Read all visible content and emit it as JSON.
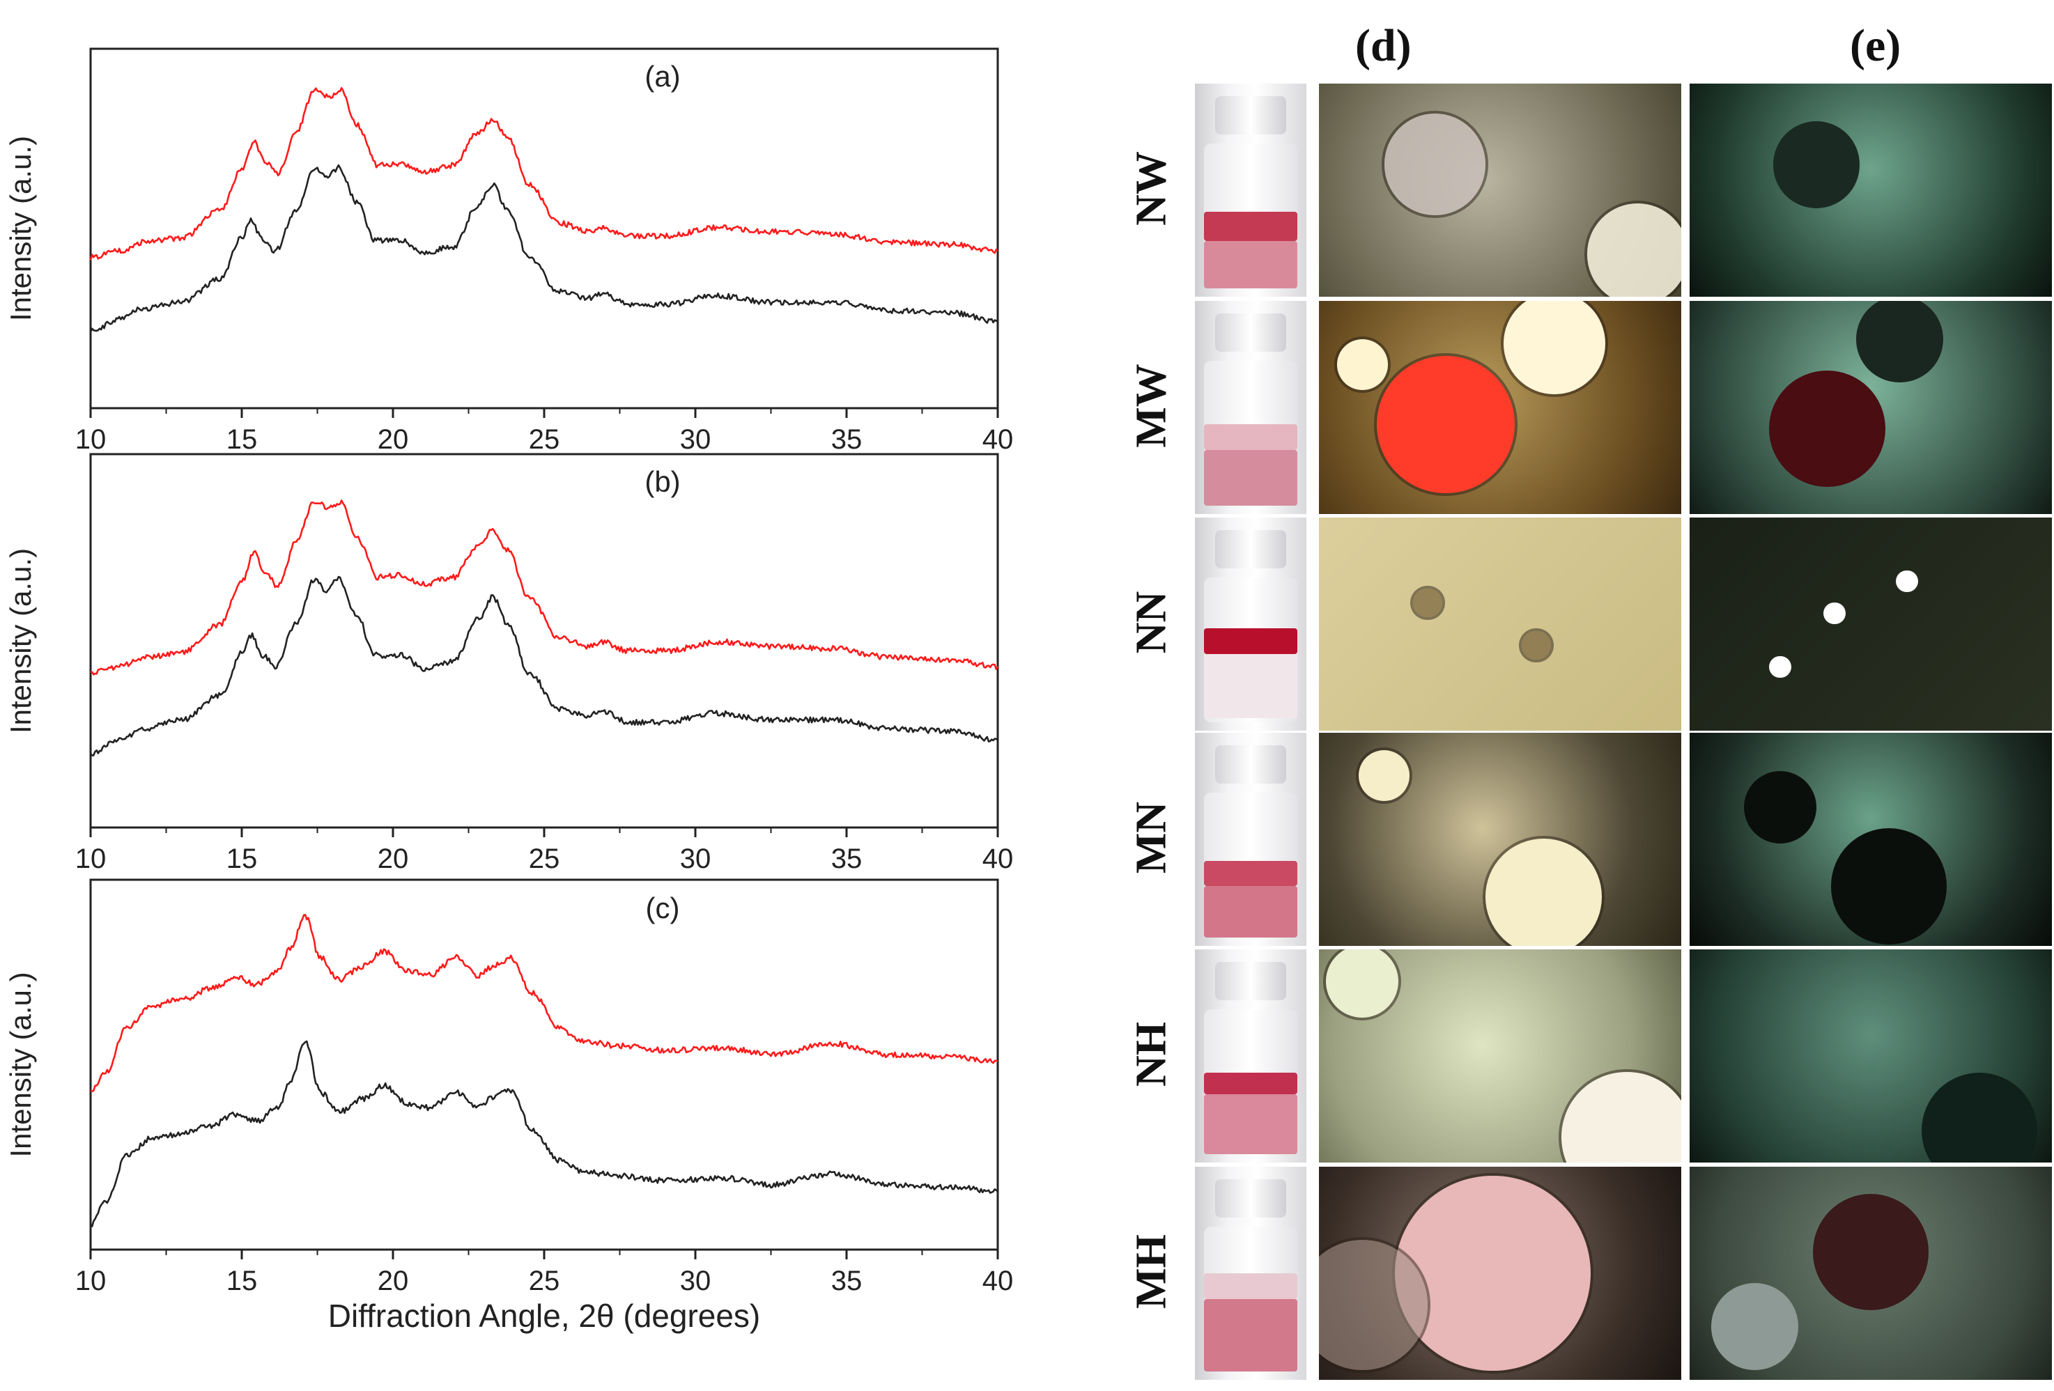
{
  "chart_data": [
    {
      "type": "line",
      "panel_label": "(a)",
      "xlabel": "",
      "ylabel": "Intensity (a.u.)",
      "xlim": [
        10,
        40
      ],
      "xticks": [
        "10",
        "15",
        "20",
        "25",
        "30",
        "35",
        "40"
      ],
      "series": [
        {
          "name": "red",
          "color": "#ff1a1a",
          "x": [
            10,
            11,
            11.7,
            13,
            14.3,
            15.0,
            15.4,
            15.8,
            16.2,
            16.8,
            17.4,
            17.9,
            18.3,
            18.8,
            19.5,
            20.3,
            21.0,
            22.0,
            22.8,
            23.3,
            23.8,
            24.5,
            25.5,
            26.5,
            26.9,
            27.8,
            29.0,
            30.8,
            32.5,
            34.5,
            36.5,
            38.5,
            40
          ],
          "values": [
            0.04,
            0.07,
            0.11,
            0.13,
            0.26,
            0.45,
            0.58,
            0.48,
            0.43,
            0.63,
            0.82,
            0.79,
            0.82,
            0.66,
            0.47,
            0.48,
            0.44,
            0.47,
            0.62,
            0.68,
            0.6,
            0.38,
            0.2,
            0.16,
            0.18,
            0.14,
            0.14,
            0.18,
            0.16,
            0.15,
            0.11,
            0.1,
            0.07
          ]
        },
        {
          "name": "black",
          "color": "#222222",
          "x": [
            10,
            11,
            11.7,
            13,
            14.3,
            15.0,
            15.3,
            15.7,
            16.1,
            16.8,
            17.4,
            17.8,
            18.2,
            18.8,
            19.4,
            20.3,
            21.0,
            22.0,
            22.8,
            23.3,
            23.8,
            24.5,
            25.5,
            26.5,
            26.9,
            27.8,
            29.0,
            30.7,
            32.5,
            34.5,
            36.5,
            38.5,
            40
          ],
          "values": [
            -0.3,
            -0.25,
            -0.2,
            -0.17,
            -0.06,
            0.13,
            0.21,
            0.12,
            0.07,
            0.26,
            0.46,
            0.41,
            0.46,
            0.3,
            0.12,
            0.12,
            0.06,
            0.09,
            0.28,
            0.38,
            0.26,
            0.04,
            -0.12,
            -0.15,
            -0.13,
            -0.18,
            -0.18,
            -0.14,
            -0.17,
            -0.17,
            -0.21,
            -0.22,
            -0.26
          ]
        }
      ]
    },
    {
      "type": "line",
      "panel_label": "(b)",
      "xlabel": "",
      "ylabel": "Intensity (a.u.)",
      "xlim": [
        10,
        40
      ],
      "xticks": [
        "10",
        "15",
        "20",
        "25",
        "30",
        "35",
        "40"
      ],
      "series": [
        {
          "name": "red",
          "color": "#ff1a1a",
          "x": [
            10,
            11,
            11.7,
            13,
            14.3,
            15.0,
            15.4,
            15.8,
            16.2,
            16.8,
            17.4,
            17.9,
            18.3,
            18.8,
            19.5,
            20.3,
            21.0,
            22.0,
            22.8,
            23.3,
            23.8,
            24.5,
            25.5,
            26.5,
            26.9,
            27.8,
            29.0,
            30.8,
            32.5,
            34.5,
            36.5,
            38.5,
            40
          ],
          "values": [
            0.03,
            0.06,
            0.1,
            0.12,
            0.25,
            0.44,
            0.57,
            0.47,
            0.42,
            0.62,
            0.8,
            0.77,
            0.8,
            0.64,
            0.46,
            0.47,
            0.43,
            0.46,
            0.6,
            0.67,
            0.58,
            0.37,
            0.19,
            0.15,
            0.17,
            0.13,
            0.13,
            0.17,
            0.15,
            0.14,
            0.1,
            0.09,
            0.06
          ]
        },
        {
          "name": "black",
          "color": "#222222",
          "x": [
            10,
            11,
            11.7,
            13,
            14.3,
            15.0,
            15.3,
            15.7,
            16.1,
            16.8,
            17.4,
            17.8,
            18.2,
            18.8,
            19.4,
            20.3,
            21.0,
            22.0,
            22.8,
            23.3,
            23.8,
            24.5,
            25.5,
            26.5,
            26.9,
            27.8,
            29.0,
            30.7,
            32.5,
            34.5,
            36.5,
            38.5,
            40
          ],
          "values": [
            -0.33,
            -0.27,
            -0.22,
            -0.18,
            -0.07,
            0.12,
            0.2,
            0.11,
            0.06,
            0.25,
            0.45,
            0.4,
            0.45,
            0.29,
            0.11,
            0.11,
            0.05,
            0.08,
            0.27,
            0.37,
            0.25,
            0.03,
            -0.13,
            -0.16,
            -0.14,
            -0.19,
            -0.19,
            -0.15,
            -0.18,
            -0.18,
            -0.22,
            -0.23,
            -0.27
          ]
        }
      ]
    },
    {
      "type": "line",
      "panel_label": "(c)",
      "xlabel": "Diffraction Angle, 2θ (degrees)",
      "ylabel": "Intensity (a.u.)",
      "xlim": [
        10,
        40
      ],
      "xticks": [
        "10",
        "15",
        "20",
        "25",
        "30",
        "35",
        "40"
      ],
      "series": [
        {
          "name": "red",
          "color": "#ff1a1a",
          "x": [
            10,
            10.5,
            11.2,
            12.0,
            13.0,
            14.0,
            14.8,
            15.5,
            16.2,
            16.6,
            17.1,
            17.6,
            18.2,
            19.0,
            19.7,
            20.5,
            21.2,
            22.1,
            22.8,
            23.3,
            23.9,
            24.6,
            25.5,
            26.3,
            27.5,
            29.0,
            31.0,
            32.5,
            34.5,
            36.5,
            38.5,
            40
          ],
          "values": [
            0.05,
            0.14,
            0.34,
            0.44,
            0.47,
            0.52,
            0.57,
            0.54,
            0.6,
            0.7,
            0.85,
            0.66,
            0.56,
            0.62,
            0.69,
            0.6,
            0.58,
            0.66,
            0.58,
            0.62,
            0.66,
            0.5,
            0.34,
            0.28,
            0.26,
            0.24,
            0.25,
            0.22,
            0.27,
            0.22,
            0.21,
            0.19
          ]
        },
        {
          "name": "black",
          "color": "#222222",
          "x": [
            10,
            10.5,
            11.2,
            12.0,
            13.0,
            14.0,
            14.8,
            15.5,
            16.2,
            16.6,
            17.1,
            17.6,
            18.2,
            19.0,
            19.7,
            20.5,
            21.2,
            22.1,
            22.8,
            23.3,
            23.9,
            24.6,
            25.5,
            26.3,
            27.5,
            29.0,
            31.0,
            32.5,
            34.5,
            36.5,
            38.5,
            40
          ],
          "values": [
            -0.55,
            -0.45,
            -0.24,
            -0.16,
            -0.14,
            -0.1,
            -0.05,
            -0.08,
            -0.02,
            0.1,
            0.28,
            0.05,
            -0.04,
            0.02,
            0.08,
            0.0,
            -0.02,
            0.05,
            -0.02,
            0.03,
            0.06,
            -0.12,
            -0.26,
            -0.31,
            -0.33,
            -0.35,
            -0.34,
            -0.37,
            -0.32,
            -0.37,
            -0.38,
            -0.4
          ]
        }
      ]
    }
  ],
  "micrographs": {
    "column_headers": [
      "(d)",
      "(e)"
    ],
    "rows": [
      {
        "label": "NW"
      },
      {
        "label": "MW"
      },
      {
        "label": "NN"
      },
      {
        "label": "MN"
      },
      {
        "label": "NH"
      },
      {
        "label": "MH"
      }
    ]
  }
}
